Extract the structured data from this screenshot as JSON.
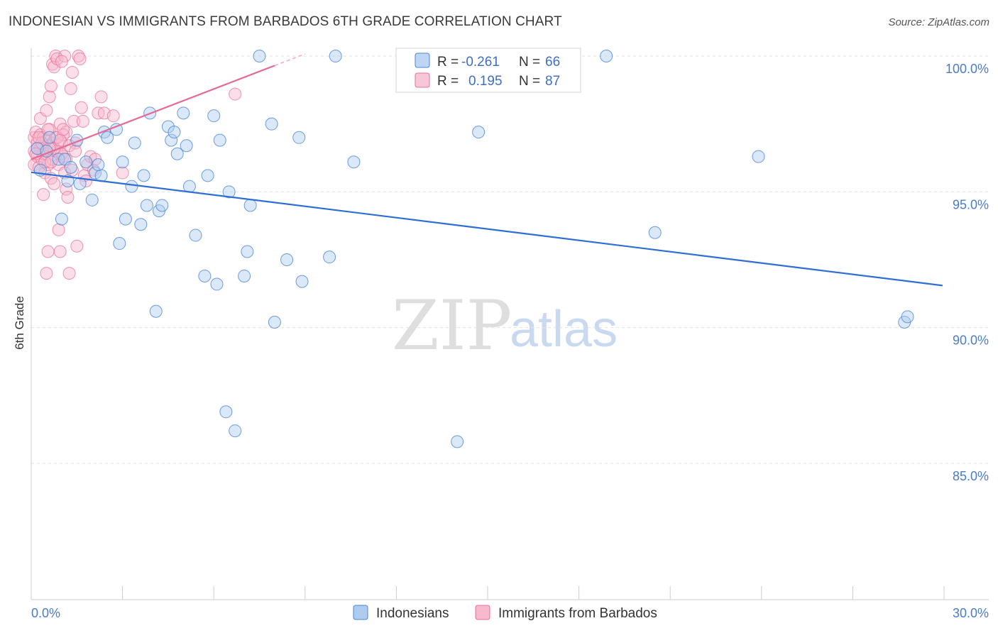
{
  "title": "INDONESIAN VS IMMIGRANTS FROM BARBADOS 6TH GRADE CORRELATION CHART",
  "source": "Source: ZipAtlas.com",
  "watermark": {
    "zip": "ZIP",
    "atlas": "atlas"
  },
  "colors": {
    "blue": "#4a86d9",
    "blue_fill": "#aecbf0",
    "pink": "#e8709a",
    "pink_fill": "#f6b9cd",
    "grid": "#e2e2e2"
  },
  "legend_box": {
    "rows": [
      {
        "r_label": "R =",
        "r_value": "-0.261",
        "n_label": "N =",
        "n_value": "66"
      },
      {
        "r_label": "R =",
        "r_value": "0.195",
        "n_label": "N =",
        "n_value": "87"
      }
    ]
  },
  "bottom_legend": [
    "Indonesians",
    "Immigrants from Barbados"
  ],
  "chart_data": {
    "type": "scatter",
    "title": "INDONESIAN VS IMMIGRANTS FROM BARBADOS 6TH GRADE CORRELATION CHART",
    "xlabel": "",
    "ylabel": "6th Grade",
    "xlim": [
      0,
      30
    ],
    "ylim": [
      80.5,
      100.5
    ],
    "x_tick_labels": [
      "0.0%",
      "30.0%"
    ],
    "y_ticks": [
      85,
      90,
      95,
      100
    ],
    "y_tick_labels": [
      "85.0%",
      "90.0%",
      "95.0%",
      "100.0%"
    ],
    "series": [
      {
        "name": "Indonesians",
        "r": -0.261,
        "n": 66,
        "trend": {
          "x": [
            0.0,
            29.95
          ],
          "y": [
            95.72,
            91.55
          ]
        },
        "points": [
          [
            0.2,
            96.6
          ],
          [
            0.5,
            96.5
          ],
          [
            0.6,
            97.0
          ],
          [
            0.9,
            96.2
          ],
          [
            1.0,
            94.0
          ],
          [
            1.1,
            96.2
          ],
          [
            1.2,
            95.4
          ],
          [
            1.5,
            96.9
          ],
          [
            1.8,
            96.1
          ],
          [
            2.0,
            94.7
          ],
          [
            2.1,
            95.7
          ],
          [
            2.3,
            95.6
          ],
          [
            2.4,
            97.2
          ],
          [
            2.5,
            97.0
          ],
          [
            2.8,
            97.3
          ],
          [
            2.9,
            93.1
          ],
          [
            3.1,
            94.0
          ],
          [
            3.3,
            95.2
          ],
          [
            3.4,
            96.8
          ],
          [
            3.6,
            93.8
          ],
          [
            3.7,
            95.6
          ],
          [
            3.8,
            94.5
          ],
          [
            3.9,
            97.9
          ],
          [
            4.1,
            90.6
          ],
          [
            4.2,
            94.3
          ],
          [
            4.3,
            94.5
          ],
          [
            4.5,
            97.4
          ],
          [
            4.6,
            96.9
          ],
          [
            4.7,
            97.2
          ],
          [
            5.0,
            97.9
          ],
          [
            5.1,
            96.7
          ],
          [
            5.2,
            95.2
          ],
          [
            5.4,
            93.4
          ],
          [
            5.7,
            91.9
          ],
          [
            5.8,
            95.6
          ],
          [
            6.0,
            97.8
          ],
          [
            6.1,
            91.6
          ],
          [
            6.4,
            86.9
          ],
          [
            6.5,
            95.0
          ],
          [
            6.7,
            86.2
          ],
          [
            7.0,
            91.9
          ],
          [
            7.1,
            92.8
          ],
          [
            7.2,
            94.5
          ],
          [
            7.5,
            100.0
          ],
          [
            7.9,
            97.5
          ],
          [
            8.0,
            90.2
          ],
          [
            8.4,
            92.5
          ],
          [
            8.8,
            97.0
          ],
          [
            8.9,
            91.7
          ],
          [
            9.8,
            92.6
          ],
          [
            10.0,
            100.0
          ],
          [
            10.6,
            96.1
          ],
          [
            14.0,
            85.8
          ],
          [
            14.7,
            97.2
          ],
          [
            18.9,
            100.0
          ],
          [
            20.5,
            93.5
          ],
          [
            23.9,
            96.3
          ],
          [
            28.7,
            90.2
          ],
          [
            28.8,
            90.4
          ],
          [
            1.6,
            95.3
          ],
          [
            3.0,
            96.1
          ],
          [
            0.3,
            95.8
          ],
          [
            2.2,
            96.0
          ],
          [
            4.8,
            96.4
          ],
          [
            6.2,
            96.9
          ],
          [
            1.3,
            95.9
          ]
        ]
      },
      {
        "name": "Immigrants from Barbados",
        "r": 0.195,
        "n": 87,
        "trend": {
          "x": [
            0.0,
            8.0
          ],
          "y": [
            96.2,
            99.65
          ]
        },
        "trend_dashed": {
          "x": [
            8.0,
            9.0
          ],
          "y": [
            99.65,
            100.08
          ]
        },
        "points": [
          [
            0.1,
            97.0
          ],
          [
            0.1,
            96.5
          ],
          [
            0.1,
            96.0
          ],
          [
            0.15,
            97.2
          ],
          [
            0.2,
            96.8
          ],
          [
            0.2,
            96.3
          ],
          [
            0.25,
            95.9
          ],
          [
            0.3,
            97.1
          ],
          [
            0.3,
            96.6
          ],
          [
            0.35,
            96.2
          ],
          [
            0.4,
            97.0
          ],
          [
            0.4,
            96.4
          ],
          [
            0.45,
            95.7
          ],
          [
            0.5,
            96.9
          ],
          [
            0.5,
            96.4
          ],
          [
            0.55,
            96.0
          ],
          [
            0.6,
            97.3
          ],
          [
            0.6,
            96.7
          ],
          [
            0.65,
            95.5
          ],
          [
            0.7,
            96.8
          ],
          [
            0.7,
            96.2
          ],
          [
            0.75,
            95.3
          ],
          [
            0.8,
            97.0
          ],
          [
            0.85,
            96.5
          ],
          [
            0.9,
            96.0
          ],
          [
            0.95,
            97.5
          ],
          [
            1.0,
            96.8
          ],
          [
            1.05,
            96.3
          ],
          [
            1.1,
            95.7
          ],
          [
            1.15,
            97.2
          ],
          [
            0.3,
            97.7
          ],
          [
            0.4,
            94.9
          ],
          [
            0.5,
            92.0
          ],
          [
            0.55,
            92.8
          ],
          [
            0.6,
            98.5
          ],
          [
            0.65,
            98.9
          ],
          [
            0.7,
            99.7
          ],
          [
            0.75,
            99.6
          ],
          [
            0.8,
            100.0
          ],
          [
            0.85,
            99.9
          ],
          [
            0.9,
            93.6
          ],
          [
            0.95,
            92.8
          ],
          [
            1.0,
            96.4
          ],
          [
            1.05,
            97.1
          ],
          [
            1.1,
            100.0
          ],
          [
            1.15,
            95.1
          ],
          [
            1.2,
            94.8
          ],
          [
            1.25,
            92.0
          ],
          [
            1.3,
            98.8
          ],
          [
            1.35,
            99.4
          ],
          [
            1.4,
            97.6
          ],
          [
            1.45,
            96.8
          ],
          [
            1.5,
            93.0
          ],
          [
            1.55,
            100.0
          ],
          [
            1.6,
            99.9
          ],
          [
            1.65,
            98.1
          ],
          [
            1.7,
            97.6
          ],
          [
            1.75,
            95.6
          ],
          [
            1.8,
            95.4
          ],
          [
            1.85,
            96.0
          ],
          [
            1.95,
            96.3
          ],
          [
            2.05,
            95.8
          ],
          [
            2.1,
            96.2
          ],
          [
            2.2,
            97.9
          ],
          [
            2.3,
            98.5
          ],
          [
            2.4,
            97.9
          ],
          [
            2.7,
            97.8
          ],
          [
            3.0,
            95.7
          ],
          [
            6.7,
            98.6
          ],
          [
            0.2,
            96.6
          ],
          [
            0.45,
            96.1
          ],
          [
            0.55,
            97.3
          ],
          [
            0.65,
            96.1
          ],
          [
            0.75,
            96.6
          ],
          [
            0.85,
            97.0
          ],
          [
            0.95,
            96.9
          ],
          [
            1.05,
            97.3
          ],
          [
            1.15,
            96.2
          ],
          [
            1.25,
            96.7
          ],
          [
            1.35,
            95.8
          ],
          [
            1.45,
            96.5
          ],
          [
            0.35,
            96.8
          ],
          [
            0.25,
            97.0
          ],
          [
            0.15,
            96.4
          ],
          [
            0.5,
            98.0
          ],
          [
            0.6,
            96.6
          ],
          [
            1.0,
            99.8
          ]
        ]
      }
    ]
  }
}
